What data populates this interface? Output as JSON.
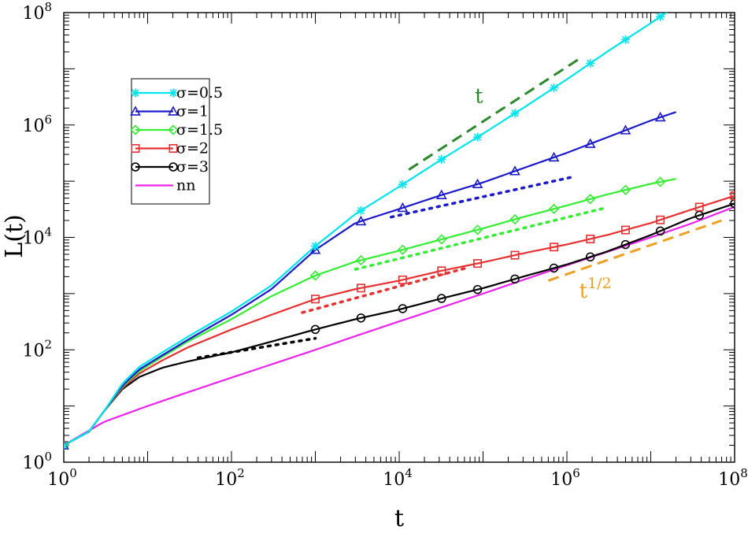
{
  "chart_data": {
    "type": "line",
    "title": "",
    "xlabel": "t",
    "ylabel": "L(t)",
    "xscale": "log",
    "yscale": "log",
    "xlim": [
      1,
      100000000
    ],
    "ylim": [
      1,
      100000000
    ],
    "grid": false,
    "x_ticks": [
      {
        "base": "10",
        "exp": "0"
      },
      {
        "base": "10",
        "exp": "2"
      },
      {
        "base": "10",
        "exp": "4"
      },
      {
        "base": "10",
        "exp": "6"
      },
      {
        "base": "10",
        "exp": "8"
      }
    ],
    "y_ticks": [
      {
        "base": "10",
        "exp": "0"
      },
      {
        "base": "10",
        "exp": "2"
      },
      {
        "base": "10",
        "exp": "4"
      },
      {
        "base": "10",
        "exp": "6"
      },
      {
        "base": "10",
        "exp": "8"
      }
    ],
    "legend_position": "top-left",
    "series": [
      {
        "name": "σ=0.5",
        "color": "#00e5ee",
        "marker": "star",
        "points": [
          [
            1,
            2
          ],
          [
            2,
            3.5
          ],
          [
            3,
            8
          ],
          [
            5,
            25
          ],
          [
            8,
            50
          ],
          [
            15,
            90
          ],
          [
            30,
            170
          ],
          [
            100,
            480
          ],
          [
            300,
            1400
          ],
          [
            1000,
            7000
          ],
          [
            3000,
            26000
          ],
          [
            10000,
            80000
          ],
          [
            30000,
            230000
          ],
          [
            100000,
            700000
          ],
          [
            300000,
            2000000
          ],
          [
            1000000,
            6500000
          ],
          [
            3000000,
            20000000
          ],
          [
            10000000,
            65000000
          ],
          [
            20000000,
            130000000
          ]
        ],
        "markers_at": [
          1,
          1000,
          3500,
          11000,
          32000,
          86000,
          240000,
          700000,
          1900000,
          5000000,
          13000000
        ]
      },
      {
        "name": "σ=1",
        "color": "#1a1acc",
        "marker": "triangle",
        "points": [
          [
            1,
            2
          ],
          [
            2,
            3.5
          ],
          [
            3,
            8
          ],
          [
            5,
            23
          ],
          [
            8,
            45
          ],
          [
            15,
            80
          ],
          [
            30,
            150
          ],
          [
            100,
            420
          ],
          [
            300,
            1200
          ],
          [
            1000,
            6000
          ],
          [
            3000,
            18000
          ],
          [
            10000,
            32000
          ],
          [
            30000,
            55000
          ],
          [
            100000,
            95000
          ],
          [
            300000,
            170000
          ],
          [
            1000000,
            320000
          ],
          [
            3000000,
            600000
          ],
          [
            10000000,
            1200000
          ],
          [
            20000000,
            1700000
          ]
        ],
        "markers_at": [
          1,
          1000,
          3500,
          11000,
          32000,
          86000,
          240000,
          700000,
          1900000,
          5000000,
          13000000
        ]
      },
      {
        "name": "σ=1.5",
        "color": "#33ee33",
        "marker": "diamond",
        "points": [
          [
            1,
            2
          ],
          [
            2,
            3.5
          ],
          [
            3,
            8
          ],
          [
            5,
            22
          ],
          [
            8,
            42
          ],
          [
            15,
            75
          ],
          [
            30,
            140
          ],
          [
            100,
            350
          ],
          [
            300,
            900
          ],
          [
            1000,
            2100
          ],
          [
            3000,
            3700
          ],
          [
            10000,
            5800
          ],
          [
            30000,
            9000
          ],
          [
            100000,
            14500
          ],
          [
            300000,
            23000
          ],
          [
            1000000,
            37000
          ],
          [
            3000000,
            58000
          ],
          [
            10000000,
            90000
          ],
          [
            20000000,
            110000
          ]
        ],
        "markers_at": [
          1,
          1000,
          3500,
          11000,
          32000,
          86000,
          240000,
          700000,
          1900000,
          5000000,
          13000000
        ]
      },
      {
        "name": "σ=2",
        "color": "#e83030",
        "marker": "square",
        "points": [
          [
            1,
            2
          ],
          [
            2,
            3.5
          ],
          [
            3,
            8
          ],
          [
            5,
            21
          ],
          [
            8,
            38
          ],
          [
            15,
            65
          ],
          [
            30,
            110
          ],
          [
            100,
            230
          ],
          [
            300,
            420
          ],
          [
            1000,
            800
          ],
          [
            3000,
            1200
          ],
          [
            10000,
            1700
          ],
          [
            30000,
            2500
          ],
          [
            100000,
            3600
          ],
          [
            300000,
            5200
          ],
          [
            1000000,
            7500
          ],
          [
            3000000,
            11000
          ],
          [
            10000000,
            18000
          ],
          [
            30000000,
            31000
          ],
          [
            100000000,
            55000
          ]
        ],
        "markers_at": [
          1,
          1000,
          3500,
          11000,
          32000,
          86000,
          240000,
          700000,
          1900000,
          5000000,
          13000000,
          38000000,
          100000000
        ]
      },
      {
        "name": "σ=3",
        "color": "#000000",
        "marker": "circle",
        "points": [
          [
            1,
            2
          ],
          [
            2,
            3.5
          ],
          [
            3,
            8
          ],
          [
            5,
            20
          ],
          [
            8,
            33
          ],
          [
            15,
            48
          ],
          [
            30,
            62
          ],
          [
            100,
            90
          ],
          [
            300,
            140
          ],
          [
            1000,
            230
          ],
          [
            3000,
            350
          ],
          [
            10000,
            520
          ],
          [
            30000,
            800
          ],
          [
            100000,
            1250
          ],
          [
            300000,
            2000
          ],
          [
            1000000,
            3300
          ],
          [
            3000000,
            5600
          ],
          [
            10000000,
            11000
          ],
          [
            30000000,
            22000
          ],
          [
            100000000,
            40000
          ]
        ],
        "markers_at": [
          1,
          1000,
          3500,
          11000,
          32000,
          86000,
          240000,
          700000,
          1900000,
          5000000,
          13000000,
          38000000,
          100000000
        ]
      },
      {
        "name": "nn",
        "color": "#ee22ee",
        "marker": "none",
        "points": [
          [
            1,
            2
          ],
          [
            3,
            5.2
          ],
          [
            10,
            10
          ],
          [
            30,
            17.5
          ],
          [
            100,
            32
          ],
          [
            300,
            55
          ],
          [
            1000,
            100
          ],
          [
            3000,
            175
          ],
          [
            10000,
            320
          ],
          [
            30000,
            550
          ],
          [
            100000,
            1000
          ],
          [
            300000,
            1750
          ],
          [
            1000000,
            3200
          ],
          [
            3000000,
            5500
          ],
          [
            10000000,
            10000
          ],
          [
            30000000,
            17500
          ],
          [
            100000000,
            35000
          ]
        ],
        "markers_at": []
      }
    ],
    "guide_lines": [
      {
        "label": "t",
        "style": "dashed",
        "color": "#2a8a2a",
        "from": [
          13000,
          160000
        ],
        "to": [
          1500000,
          16000000
        ],
        "label_at": [
          80000,
          2500000
        ]
      },
      {
        "label": "t",
        "exp": "1/2",
        "style": "dashed",
        "color": "#f0a020",
        "from": [
          600000,
          1700
        ],
        "to": [
          70000000,
          20000
        ],
        "label_at": [
          1400000,
          850
        ]
      },
      {
        "style": "dotted",
        "color": "#1a1acc",
        "from": [
          8000,
          23000
        ],
        "to": [
          1200000,
          120000
        ]
      },
      {
        "style": "dotted",
        "color": "#33ee33",
        "from": [
          3000,
          2700
        ],
        "to": [
          3000000,
          34000
        ]
      },
      {
        "style": "dotted",
        "color": "#e83030",
        "from": [
          700,
          460
        ],
        "to": [
          60000,
          2800
        ]
      },
      {
        "style": "dotted",
        "color": "#000000",
        "from": [
          40,
          72
        ],
        "to": [
          1000,
          160
        ]
      }
    ]
  }
}
